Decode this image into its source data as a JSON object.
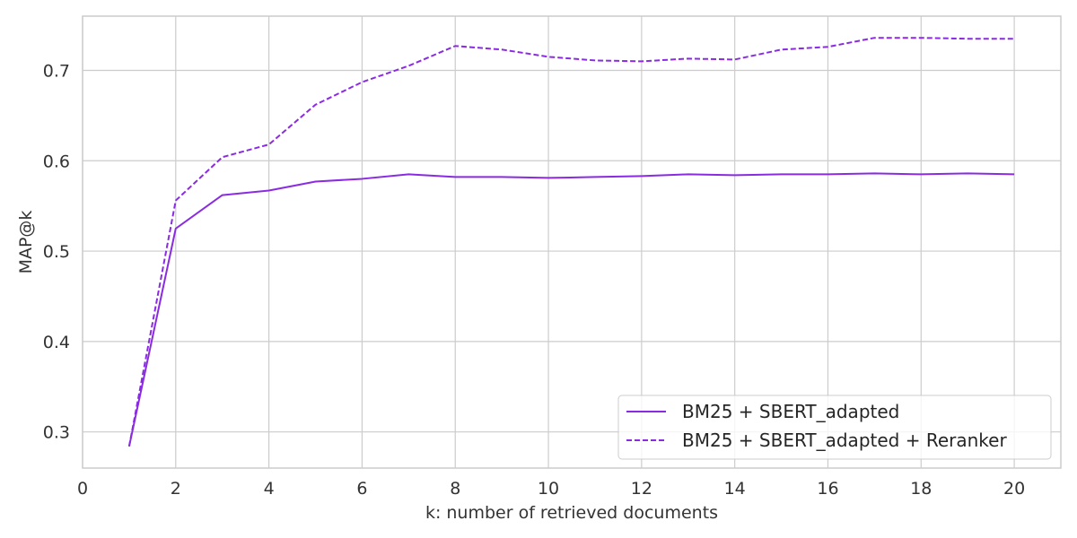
{
  "chart_data": {
    "type": "line",
    "title": "",
    "xlabel": "k: number of retrieved documents",
    "ylabel": "MAP@k",
    "xlim": [
      0,
      21
    ],
    "ylim": [
      0.26,
      0.76
    ],
    "x_ticks": [
      0,
      2,
      4,
      6,
      8,
      10,
      12,
      14,
      16,
      18,
      20
    ],
    "y_ticks": [
      0.3,
      0.4,
      0.5,
      0.6,
      0.7
    ],
    "y_tick_labels": [
      "0.3",
      "0.4",
      "0.5",
      "0.6",
      "0.7"
    ],
    "grid": true,
    "legend_position": "bottom-right",
    "x": [
      1,
      2,
      3,
      4,
      5,
      6,
      7,
      8,
      9,
      10,
      11,
      12,
      13,
      14,
      15,
      16,
      17,
      18,
      19,
      20
    ],
    "series": [
      {
        "name": "BM25 + SBERT_adapted",
        "color": "#8a2be2",
        "style": "solid",
        "values": [
          0.284,
          0.525,
          0.562,
          0.567,
          0.577,
          0.58,
          0.585,
          0.582,
          0.582,
          0.581,
          0.582,
          0.583,
          0.585,
          0.584,
          0.585,
          0.585,
          0.586,
          0.585,
          0.586,
          0.585
        ]
      },
      {
        "name": "BM25 + SBERT_adapted + Reranker",
        "color": "#8a2be2",
        "style": "dashed",
        "values": [
          0.284,
          0.556,
          0.604,
          0.618,
          0.662,
          0.687,
          0.705,
          0.727,
          0.723,
          0.715,
          0.711,
          0.71,
          0.713,
          0.712,
          0.723,
          0.726,
          0.736,
          0.736,
          0.735,
          0.735
        ]
      }
    ]
  }
}
